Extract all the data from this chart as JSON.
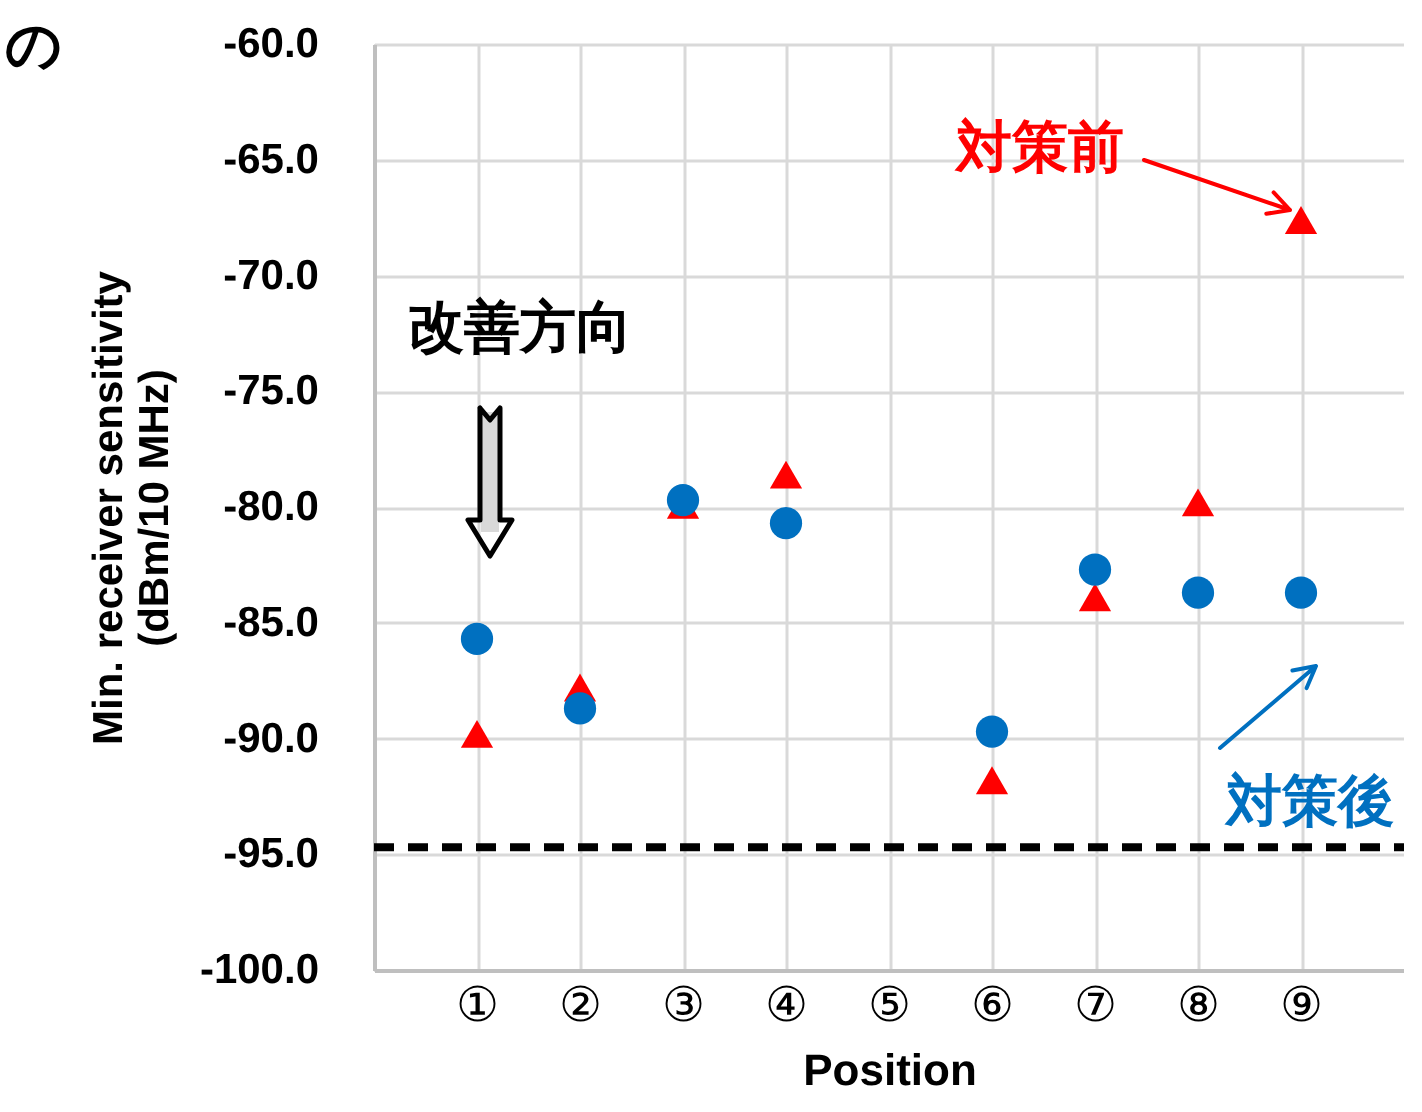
{
  "chart_data": {
    "type": "scatter",
    "categories": [
      "①",
      "②",
      "③",
      "④",
      "⑤",
      "⑥",
      "⑦",
      "⑧",
      "⑨"
    ],
    "series": [
      {
        "name": "対策前",
        "color": "#ff0000",
        "marker": "triangle",
        "values": [
          -89.8,
          -87.8,
          -79.9,
          -78.6,
          null,
          -91.8,
          -83.9,
          -79.8,
          -67.6
        ]
      },
      {
        "name": "対策後",
        "color": "#0070c0",
        "marker": "circle",
        "values": [
          -85.7,
          -88.7,
          -79.7,
          -80.7,
          null,
          -89.7,
          -82.7,
          -83.7,
          -83.7
        ]
      }
    ],
    "xlabel": "Position",
    "ylabel": "Min. receiver sensitivity\n(dBm/10 MHz)",
    "ylim": [
      -100,
      -60
    ],
    "yticks": [
      {
        "value": -100,
        "label": "-100.0"
      },
      {
        "value": -95,
        "label": "-95.0"
      },
      {
        "value": -90,
        "label": "-90.0"
      },
      {
        "value": -85,
        "label": "-85.0"
      },
      {
        "value": -80,
        "label": "-80.0"
      },
      {
        "value": -75,
        "label": "-75.0"
      },
      {
        "value": -70,
        "label": "-70.0"
      },
      {
        "value": -65,
        "label": "-65.0"
      },
      {
        "value": -60,
        "label": "-60.0"
      }
    ],
    "grid": true,
    "legend": "right",
    "ref_lines": [
      {
        "axis": "y",
        "value": -94.7,
        "color": "#000000",
        "line_style": "dashed"
      }
    ],
    "annotations": [
      "の",
      "改善方向"
    ]
  }
}
